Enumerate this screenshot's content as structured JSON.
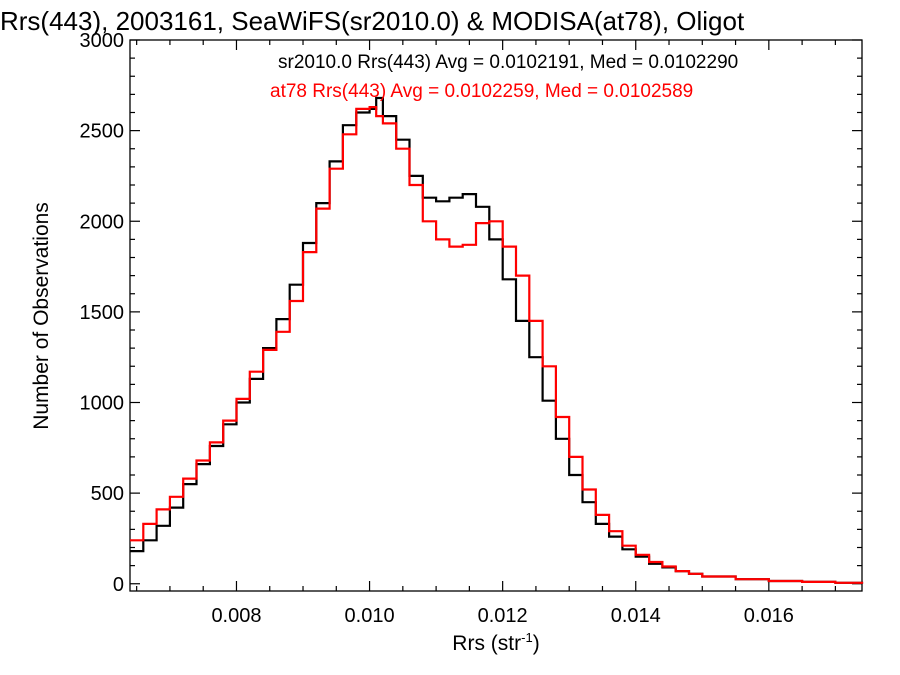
{
  "chart_data": {
    "type": "line",
    "step": true,
    "title": "Rrs(443), 2003161, SeaWiFS(sr2010.0) & MODISA(at78), Oligot",
    "xlabel": "Rrs (str",
    "xlabel_sup": "-1",
    "xlabel_tail": ")",
    "ylabel": "Number of Observations",
    "xlim": [
      0.0064,
      0.0174
    ],
    "ylim": [
      -40,
      3000
    ],
    "x_ticks": [
      0.008,
      0.01,
      0.012,
      0.014,
      0.016
    ],
    "x_tick_labels": [
      "0.008",
      "0.010",
      "0.012",
      "0.014",
      "0.016"
    ],
    "y_ticks": [
      0,
      500,
      1000,
      1500,
      2000,
      2500,
      3000
    ],
    "y_tick_labels": [
      "0",
      "500",
      "1000",
      "1500",
      "2000",
      "2500",
      "3000"
    ],
    "grid": false,
    "legend_position": "top-right",
    "annotations": [
      {
        "text": "sr2010.0 Rrs(443) Avg = 0.0102191, Med = 0.0102290",
        "color": "#000000"
      },
      {
        "text": "at78 Rrs(443) Avg = 0.0102259, Med = 0.0102589",
        "color": "#ff0000"
      }
    ],
    "series": [
      {
        "color": "#000000",
        "x": [
          0.0064,
          0.0066,
          0.0068,
          0.007,
          0.0072,
          0.0074,
          0.0076,
          0.0078,
          0.008,
          0.0082,
          0.0084,
          0.0086,
          0.0088,
          0.009,
          0.0092,
          0.0094,
          0.0096,
          0.0098,
          0.01,
          0.0101,
          0.0102,
          0.0104,
          0.0106,
          0.0108,
          0.011,
          0.0112,
          0.0114,
          0.0116,
          0.0118,
          0.012,
          0.0122,
          0.0124,
          0.0126,
          0.0128,
          0.013,
          0.0132,
          0.0134,
          0.0136,
          0.0138,
          0.014,
          0.0142,
          0.0144,
          0.0146,
          0.0148,
          0.015,
          0.0155,
          0.016,
          0.0165,
          0.017,
          0.0174
        ],
        "y": [
          180,
          240,
          320,
          420,
          550,
          660,
          760,
          880,
          1000,
          1130,
          1300,
          1460,
          1650,
          1880,
          2100,
          2330,
          2530,
          2600,
          2620,
          2680,
          2580,
          2450,
          2250,
          2130,
          2110,
          2130,
          2150,
          2080,
          1900,
          1680,
          1450,
          1250,
          1010,
          800,
          600,
          450,
          330,
          260,
          190,
          150,
          110,
          90,
          70,
          55,
          40,
          25,
          15,
          10,
          5,
          0
        ]
      },
      {
        "color": "#ff0000",
        "x": [
          0.0064,
          0.0066,
          0.0068,
          0.007,
          0.0072,
          0.0074,
          0.0076,
          0.0078,
          0.008,
          0.0082,
          0.0084,
          0.0086,
          0.0088,
          0.009,
          0.0092,
          0.0094,
          0.0096,
          0.0098,
          0.01,
          0.0101,
          0.0102,
          0.0104,
          0.0106,
          0.0108,
          0.011,
          0.0112,
          0.0114,
          0.0116,
          0.0118,
          0.012,
          0.0122,
          0.0124,
          0.0126,
          0.0128,
          0.013,
          0.0132,
          0.0134,
          0.0136,
          0.0138,
          0.014,
          0.0142,
          0.0144,
          0.0146,
          0.0148,
          0.015,
          0.0155,
          0.016,
          0.0165,
          0.017,
          0.0174
        ],
        "y": [
          240,
          330,
          410,
          480,
          580,
          680,
          780,
          900,
          1020,
          1170,
          1290,
          1390,
          1560,
          1830,
          2070,
          2290,
          2480,
          2620,
          2630,
          2580,
          2540,
          2400,
          2200,
          2000,
          1900,
          1860,
          1870,
          1990,
          2000,
          1860,
          1700,
          1450,
          1200,
          920,
          700,
          520,
          380,
          290,
          210,
          160,
          120,
          95,
          70,
          55,
          40,
          25,
          15,
          10,
          5,
          0
        ]
      }
    ]
  }
}
